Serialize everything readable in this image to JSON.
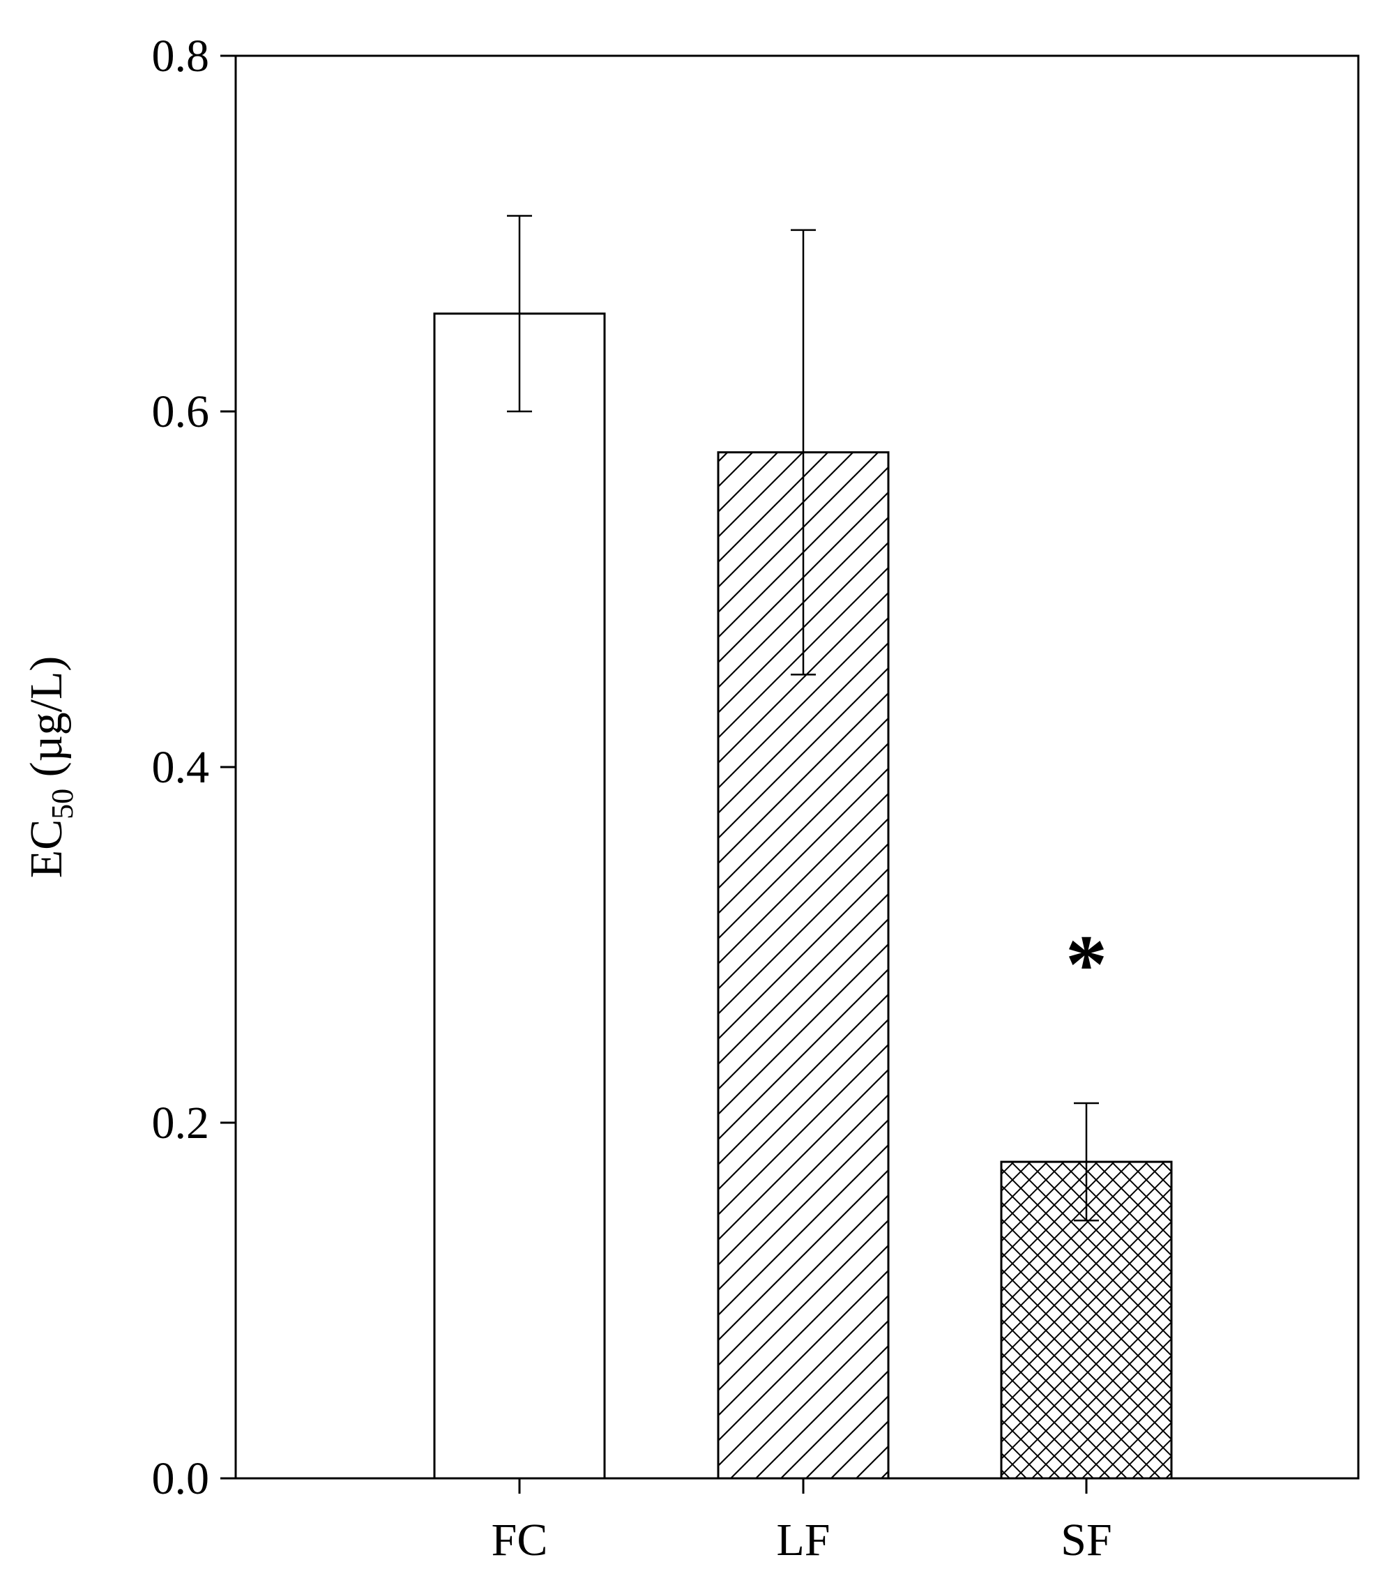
{
  "chart_data": {
    "type": "bar",
    "categories": [
      "FC",
      "LF",
      "SF"
    ],
    "values": [
      0.655,
      0.577,
      0.178
    ],
    "errors": [
      0.055,
      0.125,
      0.033
    ],
    "patterns": [
      "none",
      "diagonal",
      "crosshatch"
    ],
    "title": "",
    "xlabel": "",
    "ylabel": {
      "main": "EC",
      "subscript": "50",
      "unit": " (µg/L)"
    },
    "ylim": [
      0.0,
      0.8
    ],
    "yticks": [
      0.0,
      0.2,
      0.4,
      0.6,
      0.8
    ],
    "ytick_labels": [
      "0.0",
      "0.2",
      "0.4",
      "0.6",
      "0.8"
    ],
    "grid": false,
    "legend": "none",
    "annotations": [
      {
        "category": "SF",
        "text": "*",
        "y": 0.295
      }
    ],
    "colors": {
      "bar_fill": "#ffffff",
      "stroke": "#000000"
    }
  }
}
